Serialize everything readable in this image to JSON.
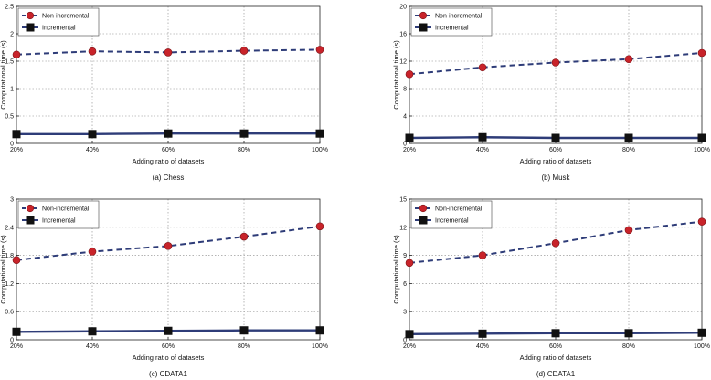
{
  "chart_data": [
    {
      "type": "line",
      "caption": "(a) Chess",
      "xlabel": "Adding ratio of datasets",
      "ylabel": "Computational time (s)",
      "categories": [
        "20%",
        "40%",
        "60%",
        "80%",
        "100%"
      ],
      "ylim": [
        0,
        2.5
      ],
      "yticks": [
        "0",
        "0.5",
        "1",
        "1.5",
        "2",
        "2.5"
      ],
      "grid": true,
      "legend_position": "top-left",
      "series": [
        {
          "name": "Non-incremental",
          "values": [
            1.62,
            1.68,
            1.66,
            1.69,
            1.71
          ],
          "color": "#2e3c78",
          "marker": "circle",
          "marker_color": "#c8232a",
          "dashed": true
        },
        {
          "name": "Incremental",
          "values": [
            0.17,
            0.17,
            0.18,
            0.18,
            0.18
          ],
          "color": "#2e3c78",
          "marker": "square",
          "marker_color": "#111111",
          "dashed": false
        }
      ]
    },
    {
      "type": "line",
      "caption": "(b) Musk",
      "xlabel": "Adding ratio of datasets",
      "ylabel": "Computational time (s)",
      "categories": [
        "20%",
        "40%",
        "60%",
        "80%",
        "100%"
      ],
      "ylim": [
        0,
        20
      ],
      "yticks": [
        "0",
        "4",
        "8",
        "12",
        "16",
        "20"
      ],
      "grid": true,
      "legend_position": "top-left",
      "series": [
        {
          "name": "Non-incremental",
          "values": [
            10.1,
            11.1,
            11.8,
            12.3,
            13.2
          ],
          "color": "#2e3c78",
          "marker": "circle",
          "marker_color": "#c8232a",
          "dashed": true
        },
        {
          "name": "Incremental",
          "values": [
            0.8,
            0.9,
            0.8,
            0.8,
            0.8
          ],
          "color": "#2e3c78",
          "marker": "square",
          "marker_color": "#111111",
          "dashed": false
        }
      ]
    },
    {
      "type": "line",
      "caption": "(c) CDATA1",
      "xlabel": "Adding ratio of datasets",
      "ylabel": "Computational time (s)",
      "categories": [
        "20%",
        "40%",
        "60%",
        "80%",
        "100%"
      ],
      "ylim": [
        0,
        3
      ],
      "yticks": [
        "0",
        "0.6",
        "1.2",
        "1.8",
        "2.4",
        "3"
      ],
      "grid": true,
      "legend_position": "top-left",
      "series": [
        {
          "name": "Non-incremental",
          "values": [
            1.7,
            1.88,
            2.0,
            2.2,
            2.42
          ],
          "color": "#2e3c78",
          "marker": "circle",
          "marker_color": "#c8232a",
          "dashed": true
        },
        {
          "name": "Incremental",
          "values": [
            0.17,
            0.18,
            0.19,
            0.2,
            0.2
          ],
          "color": "#2e3c78",
          "marker": "square",
          "marker_color": "#111111",
          "dashed": false
        }
      ]
    },
    {
      "type": "line",
      "caption": "(d) CDATA1",
      "xlabel": "Adding ratio of datasets",
      "ylabel": "Computational time (s)",
      "categories": [
        "20%",
        "40%",
        "60%",
        "80%",
        "100%"
      ],
      "ylim": [
        0,
        15
      ],
      "yticks": [
        "0",
        "3",
        "6",
        "9",
        "12",
        "15"
      ],
      "grid": true,
      "legend_position": "top-left",
      "series": [
        {
          "name": "Non-incremental",
          "values": [
            8.2,
            9.0,
            10.3,
            11.7,
            12.6
          ],
          "color": "#2e3c78",
          "marker": "circle",
          "marker_color": "#c8232a",
          "dashed": true
        },
        {
          "name": "Incremental",
          "values": [
            0.6,
            0.65,
            0.7,
            0.7,
            0.75
          ],
          "color": "#2e3c78",
          "marker": "square",
          "marker_color": "#111111",
          "dashed": false
        }
      ]
    }
  ]
}
